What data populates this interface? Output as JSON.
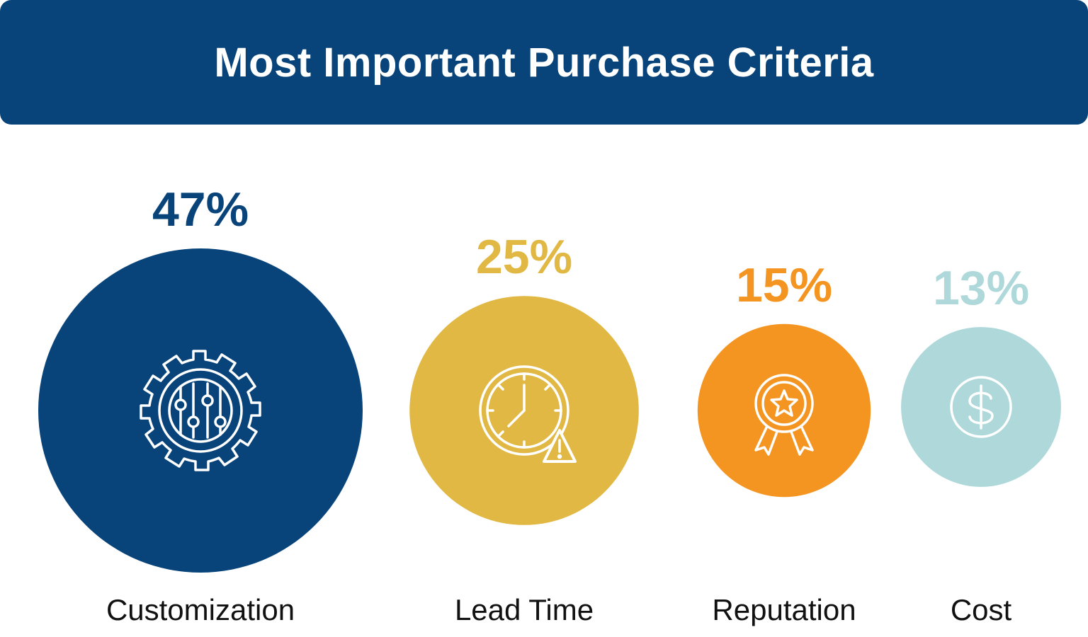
{
  "header": {
    "title": "Most Important Purchase Criteria"
  },
  "chart_data": {
    "type": "bubble",
    "title": "Most Important Purchase Criteria",
    "unit": "%",
    "items": [
      {
        "label": "Customization",
        "value": 47,
        "value_label": "47%",
        "color": "#08447A",
        "icon": "gear-sliders-icon"
      },
      {
        "label": "Lead Time",
        "value": 25,
        "value_label": "25%",
        "color": "#E0B843",
        "icon": "clock-warning-icon"
      },
      {
        "label": "Reputation",
        "value": 15,
        "value_label": "15%",
        "color": "#F49522",
        "icon": "award-star-icon"
      },
      {
        "label": "Cost",
        "value": 13,
        "value_label": "13%",
        "color": "#AED8D9",
        "icon": "dollar-coin-icon"
      }
    ]
  }
}
